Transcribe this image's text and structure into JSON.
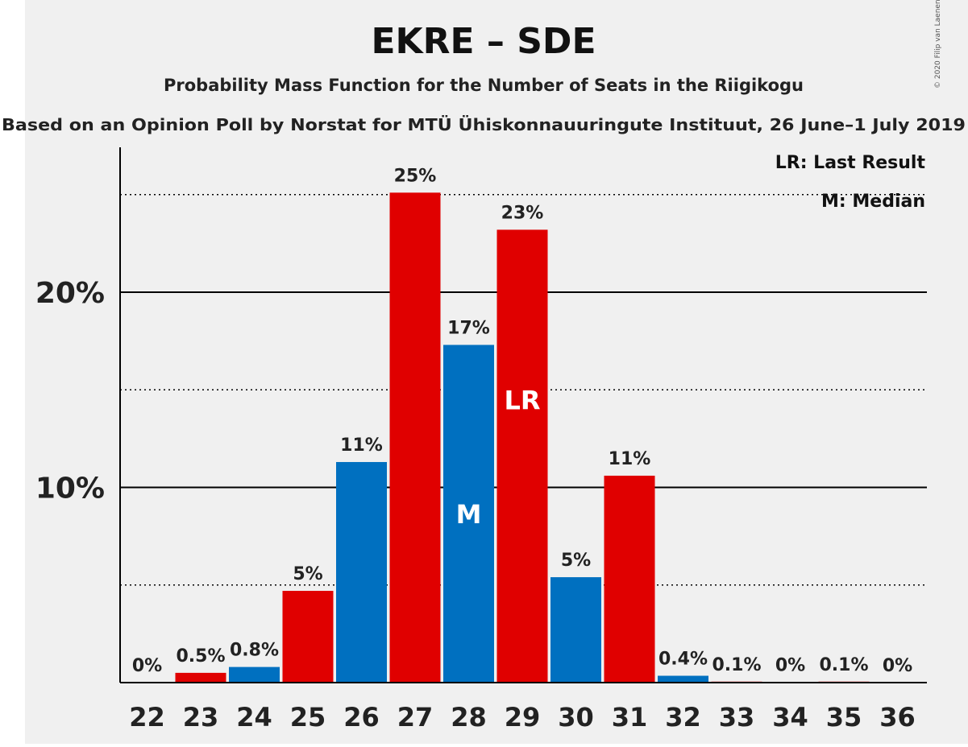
{
  "title": "EKRE – SDE",
  "subtitle": "Probability Mass Function for the Number of Seats in the Riigikogu",
  "subtitle2": "Based on an Opinion Poll by Norstat for MTÜ Ühiskonnauuringute Instituut, 26 June–1 July 2019",
  "copyright": "© 2020 Filip van Laenen",
  "legend": {
    "last_result": "LR: Last Result",
    "median": "M: Median"
  },
  "colors": {
    "background": "#f0f0f0",
    "red": "#e00000",
    "blue": "#0070c0",
    "text": "#222222"
  },
  "chart_data": {
    "type": "bar",
    "categories": [
      "22",
      "23",
      "24",
      "25",
      "26",
      "27",
      "28",
      "29",
      "30",
      "31",
      "32",
      "33",
      "34",
      "35",
      "36"
    ],
    "values": [
      0,
      0.5,
      0.8,
      4.7,
      11.3,
      25.1,
      17.3,
      23.2,
      5.4,
      10.6,
      0.35,
      0.05,
      0.02,
      0.05,
      0.01
    ],
    "data_labels": [
      "0%",
      "0.5%",
      "0.8%",
      "5%",
      "11%",
      "25%",
      "17%",
      "23%",
      "5%",
      "11%",
      "0.4%",
      "0.1%",
      "0%",
      "0.1%",
      "0%"
    ],
    "bar_colors": [
      "red",
      "red",
      "blue",
      "red",
      "blue",
      "red",
      "blue",
      "red",
      "blue",
      "red",
      "blue",
      "red",
      "blue",
      "red",
      "blue"
    ],
    "ylim": [
      0,
      27.5
    ],
    "y_ticks": [
      {
        "value": 10,
        "label": "10%"
      },
      {
        "value": 20,
        "label": "20%"
      }
    ],
    "y_minor_gridlines": [
      5,
      15,
      25
    ],
    "markers": [
      {
        "category": "28",
        "label": "M"
      },
      {
        "category": "29",
        "label": "LR"
      }
    ],
    "xlabel": "",
    "ylabel": ""
  }
}
